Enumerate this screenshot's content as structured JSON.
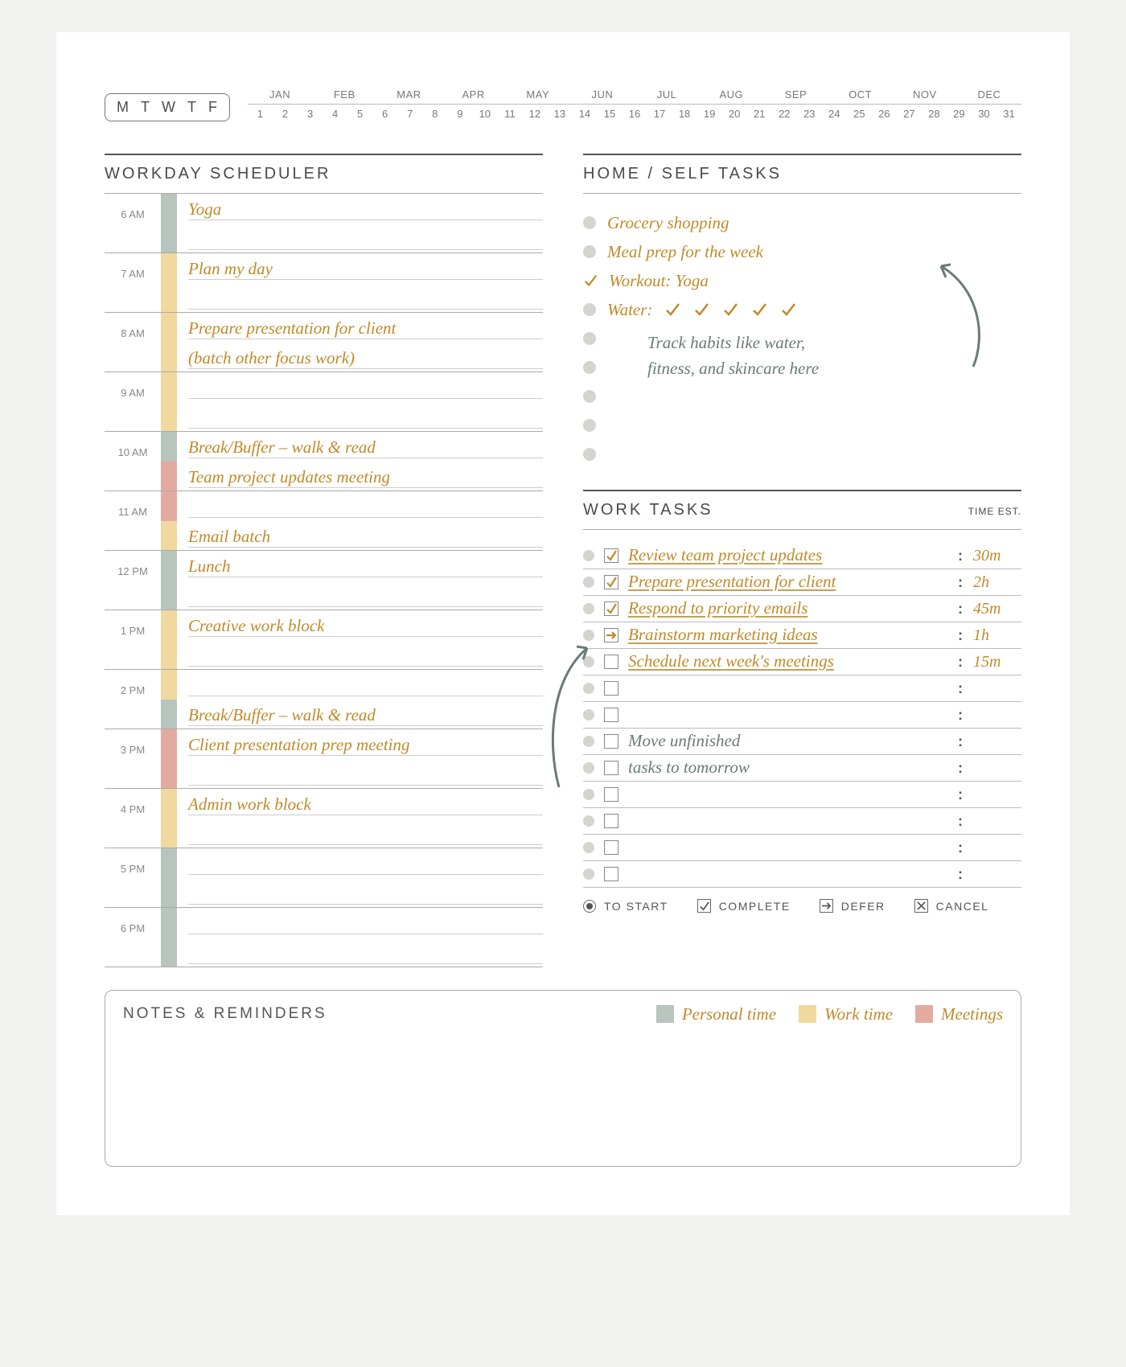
{
  "colors": {
    "personal": "#b8c4be",
    "work": "#f0d89e",
    "meeting": "#e3ab9f",
    "handwriting": "#c08a2a",
    "handwriting_gray": "#6b7a77",
    "rule": "#aaaaaa",
    "rule_dark": "#555555",
    "bullet": "#d4d4d0",
    "page_bg": "#ffffff",
    "outer_bg": "#f2f2f0"
  },
  "calendar": {
    "weekdays": [
      "M",
      "T",
      "W",
      "T",
      "F"
    ],
    "months": [
      "JAN",
      "FEB",
      "MAR",
      "APR",
      "MAY",
      "JUN",
      "JUL",
      "AUG",
      "SEP",
      "OCT",
      "NOV",
      "DEC"
    ],
    "days": [
      "1",
      "2",
      "3",
      "4",
      "5",
      "6",
      "7",
      "8",
      "9",
      "10",
      "11",
      "12",
      "13",
      "14",
      "15",
      "16",
      "17",
      "18",
      "19",
      "20",
      "21",
      "22",
      "23",
      "24",
      "25",
      "26",
      "27",
      "28",
      "29",
      "30",
      "31"
    ]
  },
  "scheduler": {
    "title": "WORKDAY SCHEDULER",
    "hours": [
      {
        "label": "6 AM",
        "segments": [
          "personal",
          "personal"
        ],
        "lines": [
          "Yoga",
          ""
        ]
      },
      {
        "label": "7 AM",
        "segments": [
          "work",
          "work"
        ],
        "lines": [
          "Plan my day",
          ""
        ]
      },
      {
        "label": "8 AM",
        "segments": [
          "work",
          "work"
        ],
        "lines": [
          "Prepare presentation for client",
          "(batch other focus work)"
        ]
      },
      {
        "label": "9 AM",
        "segments": [
          "work",
          "work"
        ],
        "lines": [
          "",
          ""
        ]
      },
      {
        "label": "10 AM",
        "segments": [
          "personal",
          "meeting"
        ],
        "lines": [
          "Break/Buffer – walk & read",
          "Team project updates meeting"
        ]
      },
      {
        "label": "11 AM",
        "segments": [
          "meeting",
          "work"
        ],
        "lines": [
          "",
          "Email batch"
        ]
      },
      {
        "label": "12 PM",
        "segments": [
          "personal",
          "personal"
        ],
        "lines": [
          "Lunch",
          ""
        ]
      },
      {
        "label": "1 PM",
        "segments": [
          "work",
          "work"
        ],
        "lines": [
          "Creative work block",
          ""
        ]
      },
      {
        "label": "2 PM",
        "segments": [
          "work",
          "personal"
        ],
        "lines": [
          "",
          "Break/Buffer – walk & read"
        ]
      },
      {
        "label": "3 PM",
        "segments": [
          "meeting",
          "meeting"
        ],
        "lines": [
          "Client presentation prep meeting",
          ""
        ]
      },
      {
        "label": "4 PM",
        "segments": [
          "work",
          "work"
        ],
        "lines": [
          "Admin work block",
          ""
        ]
      },
      {
        "label": "5 PM",
        "segments": [
          "personal",
          "personal"
        ],
        "lines": [
          "",
          ""
        ]
      },
      {
        "label": "6 PM",
        "segments": [
          "personal",
          "personal"
        ],
        "lines": [
          "",
          ""
        ]
      }
    ]
  },
  "home_tasks": {
    "title": "HOME / SELF TASKS",
    "note": "Track habits like water, fitness, and skincare here",
    "items": [
      {
        "state": "bullet",
        "text": "Grocery shopping"
      },
      {
        "state": "bullet",
        "text": "Meal prep for the week"
      },
      {
        "state": "check",
        "text": "Workout: Yoga"
      },
      {
        "state": "bullet",
        "text": "Water:",
        "tallies": 5
      },
      {
        "state": "bullet",
        "text": ""
      },
      {
        "state": "bullet",
        "text": ""
      },
      {
        "state": "bullet",
        "text": ""
      },
      {
        "state": "bullet",
        "text": ""
      },
      {
        "state": "bullet",
        "text": ""
      }
    ]
  },
  "work_tasks": {
    "title": "WORK TASKS",
    "sub": "TIME EST.",
    "items": [
      {
        "box": "check",
        "text": "Review team project updates",
        "est": "30m",
        "ink": "gold"
      },
      {
        "box": "check",
        "text": "Prepare presentation for client",
        "est": "2h",
        "ink": "gold"
      },
      {
        "box": "check",
        "text": "Respond to priority emails",
        "est": "45m",
        "ink": "gold"
      },
      {
        "box": "defer",
        "text": "Brainstorm marketing ideas",
        "est": "1h",
        "ink": "gold"
      },
      {
        "box": "empty",
        "text": "Schedule next week's meetings",
        "est": "15m",
        "ink": "gold"
      },
      {
        "box": "empty",
        "text": "",
        "est": "",
        "ink": "gold"
      },
      {
        "box": "empty",
        "text": "",
        "est": "",
        "ink": "gold"
      },
      {
        "box": "empty",
        "text": "Move unfinished",
        "est": "",
        "ink": "gray"
      },
      {
        "box": "empty",
        "text": "tasks to tomorrow",
        "est": "",
        "ink": "gray"
      },
      {
        "box": "empty",
        "text": "",
        "est": "",
        "ink": "gold"
      },
      {
        "box": "empty",
        "text": "",
        "est": "",
        "ink": "gold"
      },
      {
        "box": "empty",
        "text": "",
        "est": "",
        "ink": "gold"
      },
      {
        "box": "empty",
        "text": "",
        "est": "",
        "ink": "gold"
      }
    ],
    "legend": {
      "to_start": "TO START",
      "complete": "COMPLETE",
      "defer": "DEFER",
      "cancel": "CANCEL"
    }
  },
  "notes": {
    "title": "NOTES & REMINDERS",
    "time_legend": {
      "personal": "Personal time",
      "work": "Work time",
      "meetings": "Meetings"
    }
  }
}
